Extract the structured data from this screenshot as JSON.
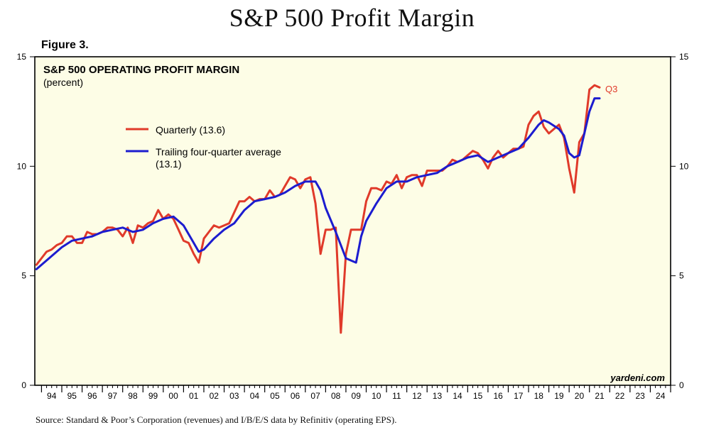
{
  "page": {
    "title": "S&P 500 Profit Margin",
    "figure_label": "Figure 3.",
    "source": "Source: Standard & Poor’s Corporation (revenues) and I/B/E/S data by Refinitiv (operating EPS)."
  },
  "chart_data": {
    "type": "line",
    "title": "S&P 500 OPERATING PROFIT MARGIN",
    "subtitle": "(percent)",
    "watermark": "yardeni.com",
    "end_label": "Q3",
    "ylim": [
      0,
      15
    ],
    "yticks": [
      0,
      5,
      10,
      15
    ],
    "xlim": [
      1993.67,
      2025.0
    ],
    "xtick_labels": [
      "94",
      "95",
      "96",
      "97",
      "98",
      "99",
      "00",
      "01",
      "02",
      "03",
      "04",
      "05",
      "06",
      "07",
      "08",
      "09",
      "10",
      "11",
      "12",
      "13",
      "14",
      "15",
      "16",
      "17",
      "18",
      "19",
      "20",
      "21",
      "22",
      "23",
      "24"
    ],
    "grid": false,
    "legend_placement": "upper-left",
    "colors": {
      "plot_background": "#fdfde6",
      "quarterly": "#e03a2a",
      "trailing": "#1c1ccf"
    },
    "series": [
      {
        "name": "Quarterly (13.6)",
        "legend": "Quarterly (13.6)",
        "color": "#e03a2a",
        "x": [
          1993.75,
          1994.0,
          1994.25,
          1994.5,
          1994.75,
          1995.0,
          1995.25,
          1995.5,
          1995.75,
          1996.0,
          1996.25,
          1996.5,
          1996.75,
          1997.0,
          1997.25,
          1997.5,
          1997.75,
          1998.0,
          1998.25,
          1998.5,
          1998.75,
          1999.0,
          1999.25,
          1999.5,
          1999.75,
          2000.0,
          2000.25,
          2000.5,
          2000.75,
          2001.0,
          2001.25,
          2001.5,
          2001.75,
          2002.0,
          2002.25,
          2002.5,
          2002.75,
          2003.0,
          2003.25,
          2003.5,
          2003.75,
          2004.0,
          2004.25,
          2004.5,
          2004.75,
          2005.0,
          2005.25,
          2005.5,
          2005.75,
          2006.0,
          2006.25,
          2006.5,
          2006.75,
          2007.0,
          2007.25,
          2007.5,
          2007.75,
          2008.0,
          2008.25,
          2008.5,
          2008.75,
          2009.0,
          2009.25,
          2009.5,
          2009.75,
          2010.0,
          2010.25,
          2010.5,
          2010.75,
          2011.0,
          2011.25,
          2011.5,
          2011.75,
          2012.0,
          2012.25,
          2012.5,
          2012.75,
          2013.0,
          2013.25,
          2013.5,
          2013.75,
          2014.0,
          2014.25,
          2014.5,
          2014.75,
          2015.0,
          2015.25,
          2015.5,
          2015.75,
          2016.0,
          2016.25,
          2016.5,
          2016.75,
          2017.0,
          2017.25,
          2017.5,
          2017.75,
          2018.0,
          2018.25,
          2018.5,
          2018.75,
          2019.0,
          2019.25,
          2019.5,
          2019.75,
          2020.0,
          2020.25,
          2020.5,
          2020.75,
          2021.0,
          2021.25,
          2021.5
        ],
        "values": [
          5.5,
          5.8,
          6.1,
          6.2,
          6.4,
          6.5,
          6.8,
          6.8,
          6.5,
          6.5,
          7.0,
          6.9,
          6.9,
          7.0,
          7.2,
          7.2,
          7.1,
          6.8,
          7.2,
          6.5,
          7.3,
          7.2,
          7.4,
          7.5,
          8.0,
          7.6,
          7.8,
          7.6,
          7.1,
          6.6,
          6.5,
          6.0,
          5.6,
          6.7,
          7.0,
          7.3,
          7.2,
          7.3,
          7.4,
          7.9,
          8.4,
          8.4,
          8.6,
          8.4,
          8.5,
          8.5,
          8.9,
          8.6,
          8.7,
          9.1,
          9.5,
          9.4,
          9.0,
          9.4,
          9.5,
          8.3,
          6.0,
          7.1,
          7.1,
          7.2,
          2.4,
          6.0,
          7.1,
          7.1,
          7.1,
          8.4,
          9.0,
          9.0,
          8.9,
          9.3,
          9.2,
          9.6,
          9.0,
          9.5,
          9.6,
          9.6,
          9.1,
          9.8,
          9.8,
          9.8,
          9.8,
          10.0,
          10.3,
          10.2,
          10.3,
          10.5,
          10.7,
          10.6,
          10.3,
          9.9,
          10.4,
          10.7,
          10.4,
          10.6,
          10.8,
          10.8,
          10.9,
          11.9,
          12.3,
          12.5,
          11.8,
          11.5,
          11.7,
          11.9,
          11.3,
          9.9,
          8.8,
          11.1,
          11.5,
          13.5,
          13.7,
          13.6
        ]
      },
      {
        "name": "Trailing four-quarter average (13.1)",
        "legend": "Trailing four-quarter average (13.1)",
        "color": "#1c1ccf",
        "x": [
          1993.75,
          1994.0,
          1994.5,
          1995.0,
          1995.5,
          1996.0,
          1996.5,
          1997.0,
          1997.5,
          1998.0,
          1998.5,
          1999.0,
          1999.5,
          2000.0,
          2000.5,
          2001.0,
          2001.5,
          2001.75,
          2002.0,
          2002.5,
          2003.0,
          2003.5,
          2004.0,
          2004.5,
          2005.0,
          2005.5,
          2006.0,
          2006.5,
          2007.0,
          2007.5,
          2007.75,
          2008.0,
          2008.5,
          2008.75,
          2009.0,
          2009.25,
          2009.5,
          2009.75,
          2010.0,
          2010.5,
          2011.0,
          2011.5,
          2012.0,
          2012.5,
          2013.0,
          2013.5,
          2014.0,
          2014.5,
          2015.0,
          2015.5,
          2016.0,
          2016.5,
          2017.0,
          2017.5,
          2018.0,
          2018.5,
          2018.75,
          2019.0,
          2019.5,
          2019.75,
          2020.0,
          2020.25,
          2020.5,
          2020.75,
          2021.0,
          2021.25,
          2021.5
        ],
        "values": [
          5.3,
          5.5,
          5.9,
          6.3,
          6.6,
          6.7,
          6.8,
          7.0,
          7.1,
          7.2,
          7.0,
          7.1,
          7.4,
          7.6,
          7.7,
          7.3,
          6.5,
          6.1,
          6.2,
          6.7,
          7.1,
          7.4,
          8.0,
          8.4,
          8.5,
          8.6,
          8.8,
          9.1,
          9.3,
          9.3,
          8.9,
          8.1,
          7.0,
          6.4,
          5.8,
          5.7,
          5.6,
          6.8,
          7.5,
          8.3,
          9.0,
          9.3,
          9.3,
          9.5,
          9.6,
          9.7,
          10.0,
          10.2,
          10.4,
          10.5,
          10.2,
          10.4,
          10.6,
          10.8,
          11.3,
          11.9,
          12.1,
          12.0,
          11.7,
          11.4,
          10.6,
          10.4,
          10.5,
          11.5,
          12.5,
          13.1,
          13.1
        ]
      }
    ]
  }
}
